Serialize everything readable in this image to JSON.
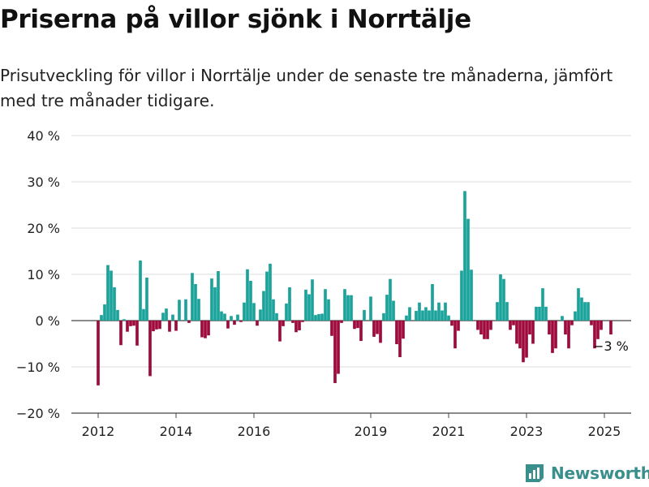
{
  "title": "Priserna på villor sjönk i Norrtälje",
  "subtitle": "Prisutveckling för villor i Norrtälje under de senaste tre månaderna, jämfört med tre månader tidigare.",
  "brand": {
    "name": "Newsworthy"
  },
  "colors": {
    "positive": "#1aa39b",
    "negative": "#9e0a3c",
    "grid": "#dddddd",
    "brand": "#3a8f8c"
  },
  "chart_data": {
    "type": "bar",
    "title": "Priserna på villor sjönk i Norrtälje",
    "xlabel": "",
    "ylabel": "",
    "ylim": [
      -20,
      40
    ],
    "y_ticks": [
      -20,
      -10,
      0,
      10,
      20,
      30,
      40
    ],
    "y_tick_labels": [
      "−20 %",
      "−10 %",
      "0 %",
      "10 %",
      "20 %",
      "30 %",
      "40 %"
    ],
    "x_tick_labels": [
      "2012",
      "2014",
      "2016",
      "2019",
      "2021",
      "2023",
      "2025"
    ],
    "x_tick_dates": [
      "2012-01",
      "2014-01",
      "2016-01",
      "2019-01",
      "2021-01",
      "2023-01",
      "2025-01"
    ],
    "grid": true,
    "unit": "%",
    "start": "2012-01",
    "values": [
      -14,
      1.2,
      3.5,
      12,
      10.8,
      7.2,
      2.3,
      -5.3,
      0.3,
      -2.4,
      -1.2,
      -1.1,
      -5.4,
      13,
      2.5,
      9.3,
      -12,
      -2.3,
      -1.9,
      -1.8,
      1.7,
      2.6,
      -2.4,
      1.3,
      -2.2,
      4.5,
      0,
      4.6,
      -0.5,
      10.3,
      7.9,
      4.7,
      -3.6,
      -3.8,
      -3.2,
      9.1,
      7.2,
      10.7,
      2,
      1.5,
      -1.7,
      1,
      -0.9,
      1.3,
      -0.3,
      3.9,
      11.1,
      8.6,
      3.8,
      -1.1,
      2.4,
      6.4,
      10.6,
      12.3,
      4.6,
      1.6,
      -4.5,
      -1.2,
      3.7,
      7.2,
      -0.5,
      -2.5,
      -2.1,
      -0.3,
      6.7,
      5.7,
      8.9,
      1.2,
      1.4,
      1.5,
      6.8,
      4.6,
      -3.3,
      -13.5,
      -11.5,
      -0.5,
      6.8,
      5.5,
      5.5,
      -1.8,
      -1.6,
      -4.4,
      2.3,
      0,
      5.2,
      -3.5,
      -2.9,
      -4.8,
      1.6,
      5.6,
      9,
      4.3,
      -5.1,
      -7.9,
      -3.9,
      1.1,
      2.9,
      0,
      2.1,
      3.9,
      2.2,
      2.9,
      2.2,
      7.9,
      2.2,
      3.9,
      2.2,
      3.9,
      1.1,
      -1.1,
      -6,
      -2.2,
      10.8,
      28,
      22,
      11,
      0,
      -2,
      -3,
      -4,
      -4,
      -2,
      0,
      4,
      10,
      9,
      4,
      -2,
      -1,
      -5,
      -6,
      -9,
      -8,
      -3,
      -5,
      3,
      3,
      7,
      3,
      -3,
      -7,
      -6,
      0,
      1,
      -3,
      -6,
      -1,
      2,
      7,
      5,
      4,
      4,
      -1,
      -6,
      -4,
      -2,
      0,
      0,
      -3
    ],
    "annotation": {
      "text": "−3 %"
    }
  }
}
